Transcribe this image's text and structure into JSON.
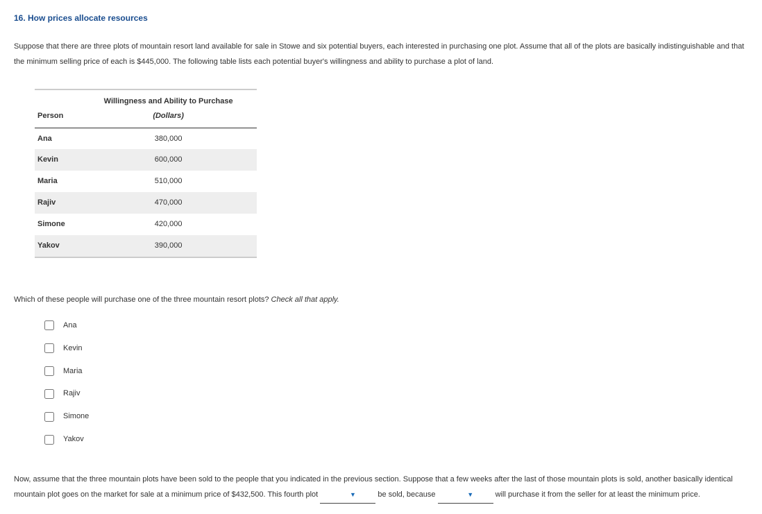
{
  "title": "16. How prices allocate resources",
  "intro": "Suppose that there are three plots of mountain resort land available for sale in Stowe and six potential buyers, each interested in purchasing one plot. Assume that all of the plots are basically indistinguishable and that the minimum selling price of each is $445,000. The following table lists each potential buyer's willingness and ability to purchase a plot of land.",
  "table": {
    "header_person": "Person",
    "header_wtp_line1": "Willingness and Ability to Purchase",
    "header_wtp_line2": "(Dollars)",
    "rows": [
      {
        "person": "Ana",
        "value": "380,000"
      },
      {
        "person": "Kevin",
        "value": "600,000"
      },
      {
        "person": "Maria",
        "value": "510,000"
      },
      {
        "person": "Rajiv",
        "value": "470,000"
      },
      {
        "person": "Simone",
        "value": "420,000"
      },
      {
        "person": "Yakov",
        "value": "390,000"
      }
    ]
  },
  "question_main": "Which of these people will purchase one of the three mountain resort plots? ",
  "question_hint": "Check all that apply.",
  "checkbox_labels": [
    "Ana",
    "Kevin",
    "Maria",
    "Rajiv",
    "Simone",
    "Yakov"
  ],
  "final_part1": "Now, assume that the three mountain plots have been sold to the people that you indicated in the previous section. Suppose that a few weeks after the last of those mountain plots is sold, another basically identical mountain plot goes on the market for sale at a minimum price of $432,500. This fourth plot ",
  "final_part2": " be sold, because ",
  "final_part3": " will purchase it from the seller for at least the minimum price."
}
